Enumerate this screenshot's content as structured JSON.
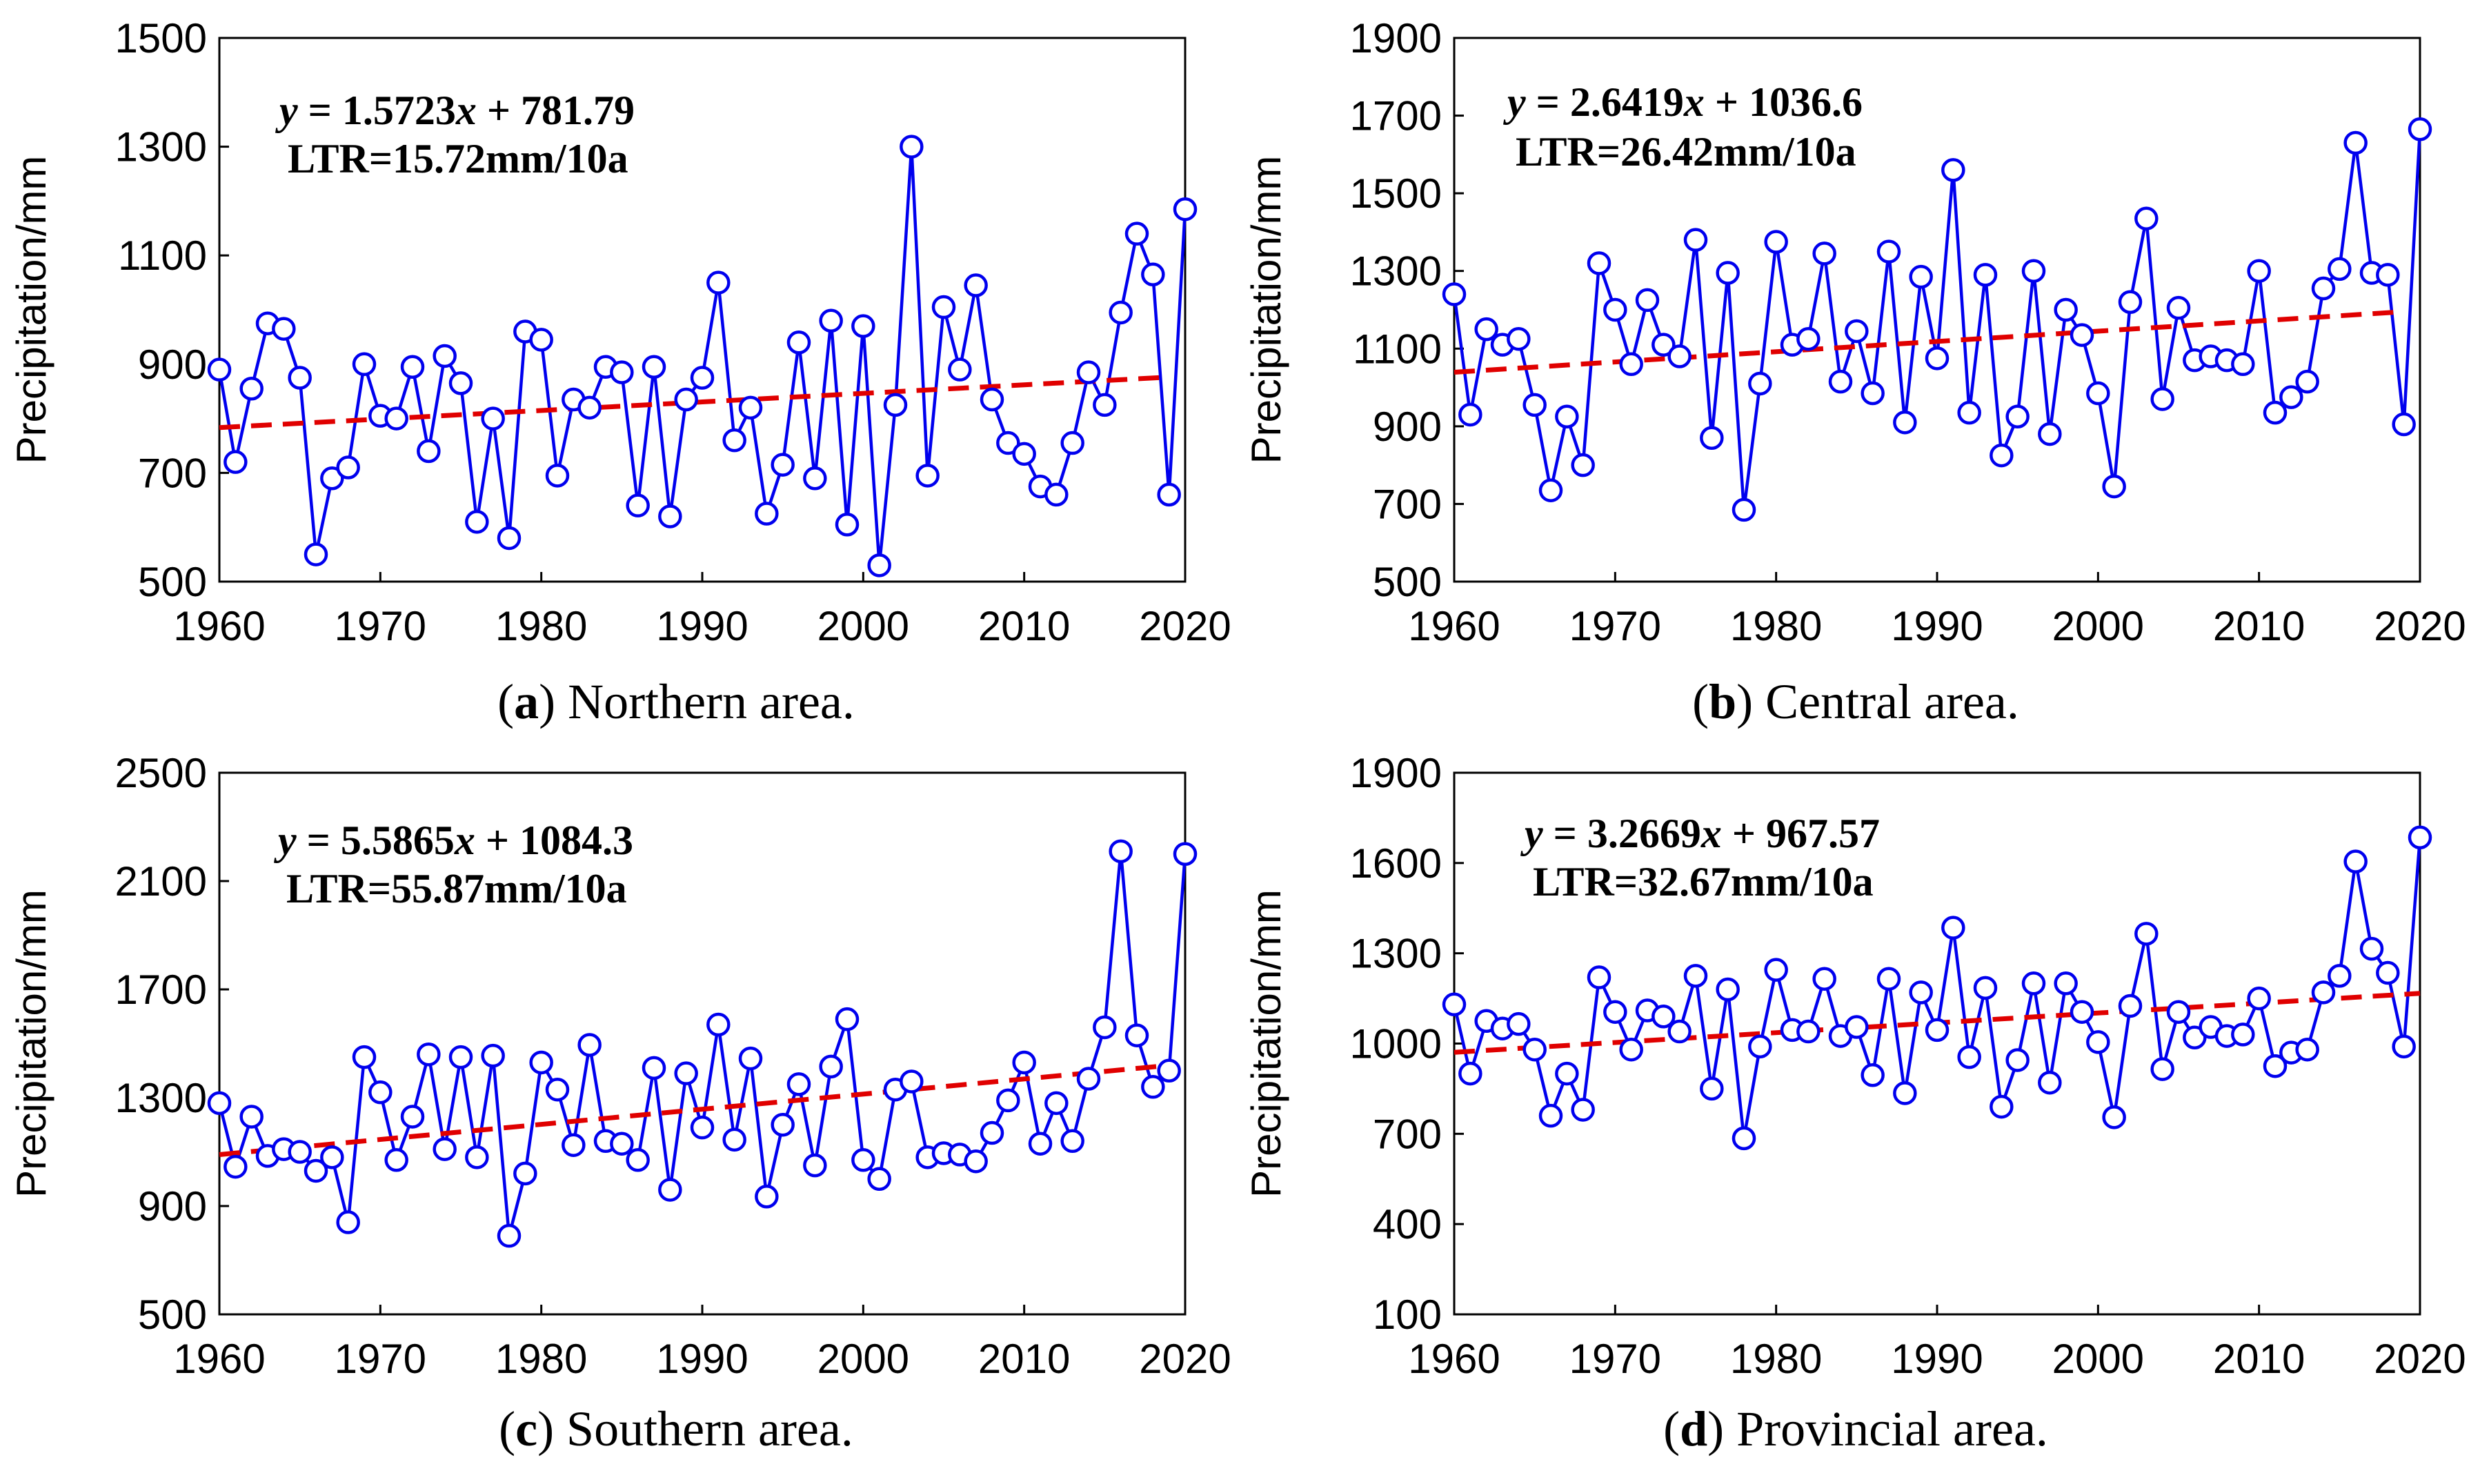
{
  "figure": {
    "colors": {
      "series": "#0000ee",
      "trend": "#e00000",
      "axis": "#000000"
    }
  },
  "chart_data": [
    {
      "type": "line",
      "panel_letter": "a",
      "caption": "Northern area.",
      "ylabel": "Precipitation/mm",
      "xlabel": "",
      "xlim": [
        1960,
        2020
      ],
      "xticks": [
        1960,
        1970,
        1980,
        1990,
        2000,
        2010,
        2020
      ],
      "ylim": [
        500,
        1500
      ],
      "yticks": [
        500,
        700,
        900,
        1100,
        1300,
        1500
      ],
      "equation": {
        "y": "y",
        "eq": " = 1.5723",
        "x": "x",
        "rest": " + 781.79"
      },
      "ltr": "LTR=15.72mm/10a",
      "trend": {
        "slope": 1.5723,
        "intercept": 781.79,
        "x_start": 1960,
        "x_end": 2019
      },
      "x_start": 1960,
      "values": [
        890,
        720,
        855,
        975,
        965,
        875,
        550,
        690,
        710,
        900,
        805,
        800,
        895,
        740,
        915,
        865,
        610,
        800,
        580,
        960,
        945,
        695,
        835,
        820,
        895,
        885,
        640,
        895,
        620,
        835,
        875,
        1050,
        760,
        820,
        625,
        715,
        940,
        690,
        980,
        605,
        970,
        530,
        825,
        1300,
        695,
        1005,
        890,
        1045,
        835,
        755,
        735,
        675,
        660,
        755,
        885,
        825,
        995,
        1140,
        1065,
        660,
        1185
      ]
    },
    {
      "type": "line",
      "panel_letter": "b",
      "caption": "Central area.",
      "ylabel": "Precipitation/mm",
      "xlabel": "",
      "xlim": [
        1960,
        2020
      ],
      "xticks": [
        1960,
        1970,
        1980,
        1990,
        2000,
        2010,
        2020
      ],
      "ylim": [
        500,
        1900
      ],
      "yticks": [
        500,
        700,
        900,
        1100,
        1300,
        1500,
        1700,
        1900
      ],
      "equation": {
        "y": "y",
        "eq": " = 2.6419",
        "x": "x",
        "rest": " + 1036.6"
      },
      "ltr": "LTR=26.42mm/10a",
      "trend": {
        "slope": 2.6419,
        "intercept": 1036.6,
        "x_start": 1960,
        "x_end": 2019
      },
      "x_start": 1960,
      "values": [
        1240,
        930,
        1150,
        1110,
        1125,
        955,
        735,
        925,
        800,
        1320,
        1200,
        1060,
        1225,
        1110,
        1080,
        1380,
        870,
        1295,
        685,
        1010,
        1375,
        1110,
        1125,
        1345,
        1015,
        1145,
        985,
        1350,
        910,
        1285,
        1075,
        1560,
        935,
        1290,
        825,
        925,
        1300,
        880,
        1200,
        1135,
        985,
        745,
        1220,
        1435,
        970,
        1205,
        1070,
        1080,
        1070,
        1060,
        1300,
        935,
        975,
        1015,
        1255,
        1305,
        1630,
        1295,
        1290,
        905,
        1665
      ]
    },
    {
      "type": "line",
      "panel_letter": "c",
      "caption": "Southern area.",
      "ylabel": "Precipitation/mm",
      "xlabel": "",
      "xlim": [
        1960,
        2020
      ],
      "xticks": [
        1960,
        1970,
        1980,
        1990,
        2000,
        2010,
        2020
      ],
      "ylim": [
        500,
        2500
      ],
      "yticks": [
        500,
        900,
        1300,
        1700,
        2100,
        2500
      ],
      "equation": {
        "y": "y",
        "eq": " = 5.5865",
        "x": "x",
        "rest": " + 1084.3"
      },
      "ltr": "LTR=55.87mm/10a",
      "trend": {
        "slope": 5.5865,
        "intercept": 1084.3,
        "x_start": 1960,
        "x_end": 2019
      },
      "x_start": 1960,
      "values": [
        1280,
        1045,
        1230,
        1085,
        1110,
        1100,
        1030,
        1080,
        840,
        1450,
        1320,
        1070,
        1230,
        1460,
        1110,
        1450,
        1080,
        1455,
        790,
        1020,
        1430,
        1330,
        1125,
        1495,
        1140,
        1130,
        1070,
        1410,
        960,
        1390,
        1190,
        1570,
        1145,
        1445,
        935,
        1200,
        1350,
        1050,
        1415,
        1590,
        1070,
        1000,
        1330,
        1360,
        1080,
        1095,
        1090,
        1065,
        1170,
        1290,
        1430,
        1130,
        1280,
        1140,
        1370,
        1560,
        2210,
        1530,
        1340,
        1400,
        2200
      ]
    },
    {
      "type": "line",
      "panel_letter": "d",
      "caption": "Provincial area.",
      "ylabel": "Precipitation/mm",
      "xlabel": "",
      "xlim": [
        1960,
        2020
      ],
      "xticks": [
        1960,
        1970,
        1980,
        1990,
        2000,
        2010,
        2020
      ],
      "ylim": [
        100,
        1900
      ],
      "yticks": [
        100,
        400,
        700,
        1000,
        1300,
        1600,
        1900
      ],
      "equation": {
        "y": "y",
        "eq": " = 3.2669",
        "x": "x",
        "rest": " + 967.57"
      },
      "ltr": "LTR=32.67mm/10a",
      "trend": {
        "slope": 3.2669,
        "intercept": 967.57,
        "x_start": 1960,
        "x_end": 2020
      },
      "x_start": 1960,
      "values": [
        1130,
        900,
        1075,
        1050,
        1065,
        980,
        760,
        900,
        780,
        1220,
        1105,
        980,
        1110,
        1090,
        1040,
        1225,
        850,
        1180,
        685,
        990,
        1245,
        1045,
        1040,
        1215,
        1025,
        1055,
        895,
        1215,
        835,
        1170,
        1045,
        1385,
        955,
        1185,
        790,
        945,
        1200,
        870,
        1200,
        1105,
        1005,
        755,
        1125,
        1365,
        915,
        1105,
        1020,
        1055,
        1025,
        1030,
        1150,
        925,
        970,
        980,
        1170,
        1225,
        1605,
        1315,
        1235,
        990,
        1685
      ]
    }
  ]
}
